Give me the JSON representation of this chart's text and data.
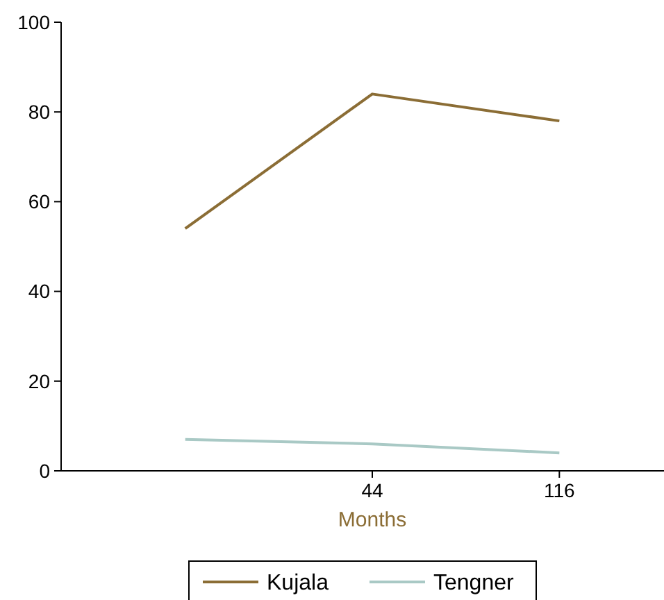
{
  "chart_data": {
    "type": "line",
    "xlabel": "Months",
    "categories": [
      null,
      "44",
      "116"
    ],
    "series": [
      {
        "name": "Kujala",
        "color": "#8b6d35",
        "values": [
          54,
          84,
          78
        ]
      },
      {
        "name": "Tengner",
        "color": "#a9c9c5",
        "values": [
          7,
          6,
          4
        ]
      }
    ],
    "ylim": [
      0,
      100
    ],
    "yticks": [
      0,
      20,
      40,
      60,
      80,
      100
    ],
    "grid": false,
    "legend": "bottom",
    "marker": "none",
    "line_style": "solid"
  }
}
